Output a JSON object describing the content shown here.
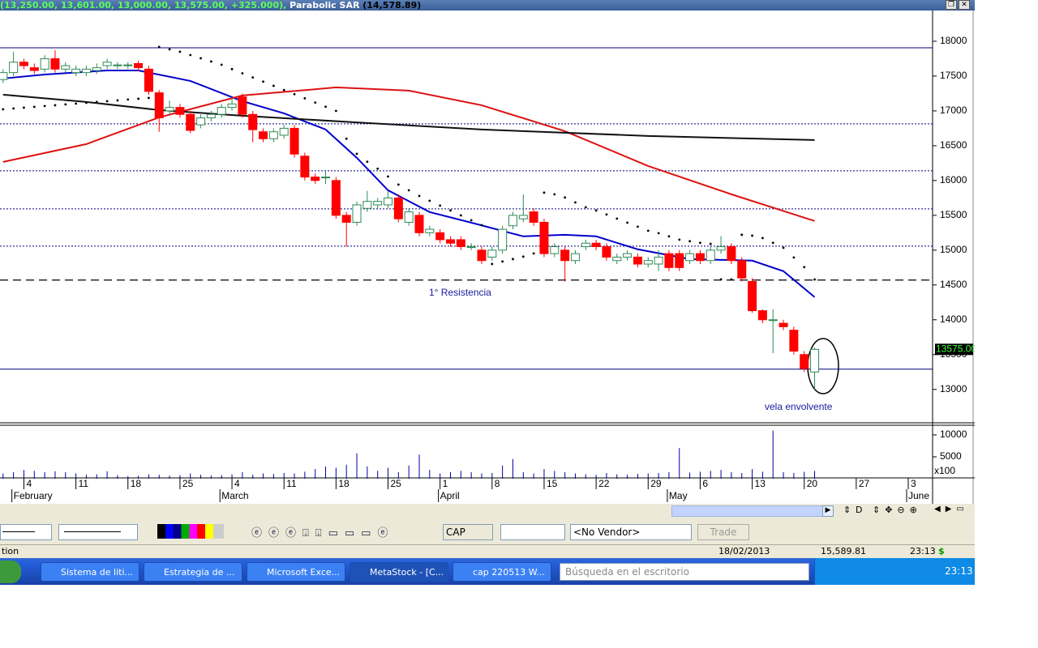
{
  "window": {
    "header_values": "(13,250.00, 13,601.00, 13,000.00, 13,575.00, +325.000),",
    "header_indicator": "Parabolic SAR",
    "header_indicator_value": "(14,578.89)"
  },
  "chart_data": {
    "type": "candlestick",
    "categories": [
      null,
      null,
      "4",
      null,
      null,
      null,
      null,
      "11",
      null,
      null,
      null,
      null,
      "18",
      null,
      null,
      null,
      null,
      "25",
      null,
      null,
      null,
      null,
      "4",
      null,
      null,
      null,
      null,
      "11",
      null,
      null,
      null,
      null,
      "18",
      null,
      null,
      null,
      null,
      "25",
      null,
      null,
      null,
      null,
      "1",
      null,
      null,
      null,
      null,
      "8",
      null,
      null,
      null,
      null,
      "15",
      null,
      null,
      null,
      null,
      "22",
      null,
      null,
      null,
      null,
      "29",
      null,
      null,
      null,
      null,
      "6",
      null,
      null,
      null,
      null,
      "13",
      null,
      null,
      null,
      null,
      "20",
      null,
      null,
      null,
      null,
      "27",
      null,
      null,
      null,
      null,
      "3"
    ],
    "month_labels": [
      null,
      "February",
      null,
      null,
      null,
      null,
      null,
      null,
      null,
      null,
      null,
      null,
      null,
      null,
      null,
      null,
      null,
      null,
      null,
      null,
      null,
      "March",
      null,
      null,
      null,
      null,
      null,
      null,
      null,
      null,
      null,
      null,
      null,
      null,
      null,
      null,
      null,
      null,
      null,
      null,
      null,
      null,
      "April",
      null,
      null,
      null,
      null,
      null,
      null,
      null,
      null,
      null,
      null,
      null,
      null,
      null,
      null,
      null,
      null,
      null,
      null,
      null,
      null,
      null,
      "May",
      null,
      null,
      null,
      null,
      null,
      null,
      null,
      null,
      null,
      null,
      null,
      null,
      null,
      null,
      null,
      null,
      null,
      null,
      null,
      null,
      null,
      null,
      "June"
    ],
    "open": [
      17450,
      17550,
      17700,
      17620,
      17600,
      17750,
      17600,
      17550,
      17550,
      17580,
      17650,
      17650,
      17650,
      17680,
      17600,
      17260,
      17000,
      17050,
      16950,
      16800,
      16900,
      16950,
      17050,
      17200,
      16950,
      16700,
      16600,
      16650,
      16750,
      16350,
      16050,
      16050,
      16000,
      15500,
      15400,
      15600,
      15650,
      15650,
      15750,
      15400,
      15500,
      15250,
      15250,
      15150,
      15150,
      15050,
      15000,
      14900,
      15000,
      15350,
      15450,
      15550,
      15400,
      14950,
      15000,
      14850,
      15050,
      15100,
      15050,
      14850,
      14900,
      14900,
      14800,
      14800,
      14950,
      14950,
      14850,
      14950,
      14850,
      15000,
      15050,
      14850,
      14550,
      14130,
      14000,
      13950,
      13850,
      13500,
      13250,
      null,
      null,
      null,
      null,
      null,
      null,
      null,
      null,
      null
    ],
    "high": [
      17600,
      17850,
      17750,
      17680,
      17800,
      17870,
      17700,
      17650,
      17650,
      17680,
      17750,
      17700,
      17700,
      17720,
      17650,
      17300,
      17150,
      17100,
      17000,
      16950,
      17000,
      17100,
      17200,
      17250,
      17000,
      16750,
      16750,
      16800,
      16800,
      16400,
      16100,
      16150,
      16050,
      15550,
      15700,
      15850,
      15750,
      15850,
      15800,
      15600,
      15550,
      15350,
      15300,
      15200,
      15200,
      15100,
      15050,
      15050,
      15350,
      15550,
      15800,
      15600,
      15450,
      15100,
      15050,
      15000,
      15150,
      15150,
      15100,
      14950,
      15000,
      14950,
      14900,
      15000,
      15000,
      15000,
      15000,
      15000,
      15050,
      15200,
      15100,
      14900,
      14600,
      14150,
      14150,
      14000,
      13900,
      13550,
      13601,
      null,
      null,
      null,
      null,
      null,
      null,
      null,
      null,
      null
    ],
    "low": [
      17400,
      17500,
      17600,
      17530,
      17550,
      17550,
      17550,
      17500,
      17500,
      17530,
      17600,
      17600,
      17600,
      17570,
      17230,
      16700,
      16950,
      16900,
      16680,
      16750,
      16850,
      16900,
      17000,
      16900,
      16550,
      16550,
      16550,
      16600,
      16330,
      16000,
      15950,
      15950,
      15450,
      15050,
      15350,
      15550,
      15600,
      15600,
      15400,
      15350,
      15200,
      15200,
      15100,
      15050,
      15000,
      15000,
      14800,
      14850,
      14950,
      15300,
      15400,
      15350,
      14900,
      14900,
      14550,
      14800,
      15000,
      15000,
      14850,
      14800,
      14850,
      14750,
      14750,
      14700,
      14700,
      14700,
      14800,
      14800,
      14800,
      14950,
      14800,
      14550,
      14100,
      13950,
      13520,
      13850,
      13500,
      13250,
      13000,
      null,
      null,
      null,
      null,
      null,
      null,
      null,
      null,
      null
    ],
    "close": [
      17550,
      17700,
      17650,
      17580,
      17750,
      17600,
      17650,
      17600,
      17600,
      17620,
      17700,
      17660,
      17660,
      17620,
      17280,
      16900,
      17050,
      16950,
      16720,
      16900,
      16950,
      17050,
      17100,
      16950,
      16730,
      16600,
      16700,
      16750,
      16380,
      16050,
      16000,
      16050,
      15500,
      15400,
      15650,
      15700,
      15700,
      15750,
      15450,
      15550,
      15250,
      15300,
      15150,
      15100,
      15050,
      15050,
      14850,
      15000,
      15300,
      15500,
      15500,
      15400,
      14950,
      15050,
      14850,
      14950,
      15100,
      15050,
      14900,
      14900,
      14950,
      14800,
      14850,
      14900,
      14750,
      14750,
      14950,
      14850,
      15000,
      15050,
      14850,
      14600,
      14130,
      14000,
      14000,
      13900,
      13550,
      13300,
      13575,
      null,
      null,
      null,
      null,
      null,
      null,
      null,
      null,
      null
    ],
    "up_color": "#2e8b57",
    "down_color": "#ff0000",
    "ylim": [
      12520,
      18360
    ],
    "yticks": [
      13000,
      13500,
      14000,
      14500,
      15000,
      15500,
      16000,
      16500,
      17000,
      17500,
      18000
    ],
    "lines": [
      {
        "color": "#0000cc",
        "x": [
          0,
          4,
          10,
          13,
          18,
          23,
          27,
          31,
          34,
          37,
          41,
          45,
          50,
          54,
          57,
          61,
          66,
          72,
          75,
          78
        ],
        "values": [
          17465,
          17523,
          17581,
          17581,
          17430,
          17140,
          16965,
          16733,
          16326,
          15860,
          15547,
          15395,
          15198,
          15221,
          15198,
          15012,
          14872,
          14849,
          14698,
          14326
        ]
      },
      {
        "color": "#dd1111",
        "x": [
          0,
          8,
          15,
          23,
          32,
          39,
          46,
          54,
          62,
          70,
          78
        ],
        "values": [
          16267,
          16523,
          16907,
          17221,
          17337,
          17291,
          17081,
          16709,
          16209,
          15802,
          15419
        ]
      },
      {
        "color": "#111111",
        "x": [
          0,
          8,
          15,
          23,
          35,
          46,
          62,
          78
        ],
        "values": [
          17233,
          17128,
          17012,
          16930,
          16826,
          16733,
          16640,
          16581
        ]
      }
    ],
    "sar": {
      "color": "#000000",
      "values": [
        17023,
        17035,
        17047,
        17058,
        17070,
        17081,
        17093,
        17105,
        17116,
        17128,
        17140,
        17151,
        17163,
        17174,
        17186,
        17919,
        17884,
        17849,
        17802,
        17756,
        17709,
        17663,
        17600,
        17540,
        17480,
        17420,
        17360,
        17300,
        17240,
        17180,
        17120,
        17060,
        17000,
        16600,
        16384,
        16270,
        16170,
        16058,
        15942,
        15860,
        15779,
        15709,
        15640,
        15570,
        15500,
        15430,
        15360,
        14802,
        14837,
        14872,
        14907,
        14953,
        15826,
        15802,
        15756,
        15686,
        15616,
        15570,
        15512,
        15453,
        15395,
        15337,
        15279,
        15244,
        15198,
        15151,
        15128,
        15105,
        15090,
        14581,
        14581,
        15221,
        15209,
        15174,
        15105,
        15035,
        14895,
        14756,
        14579,
        null,
        null,
        null,
        null,
        null,
        null,
        null,
        null,
        null
      ]
    },
    "hlines": [
      {
        "value": 17907,
        "color": "#000080",
        "style": "solid"
      },
      {
        "value": 16814,
        "color": "#000080",
        "style": "dotted"
      },
      {
        "value": 16140,
        "color": "#000080",
        "style": "dotted"
      },
      {
        "value": 15593,
        "color": "#000080",
        "style": "dotted"
      },
      {
        "value": 15058,
        "color": "#000080",
        "style": "dotted"
      },
      {
        "value": 14570,
        "color": "#000000",
        "style": "dashed"
      },
      {
        "value": 13291,
        "color": "#000080",
        "style": "solid"
      }
    ],
    "annotations": [
      "1° Resistencia",
      "vela envolvente"
    ],
    "last_price": {
      "value": 13575,
      "label": "13575.00"
    },
    "volume": {
      "color": "#0000aa",
      "unit_label": "x100",
      "ylim": [
        0,
        12400
      ],
      "yticks": [
        5000,
        10000
      ],
      "values": [
        1200,
        1500,
        2000,
        1800,
        1500,
        1700,
        1500,
        1200,
        900,
        1000,
        1700,
        800,
        600,
        700,
        1000,
        900,
        700,
        800,
        1200,
        900,
        700,
        800,
        1000,
        1500,
        900,
        1200,
        1100,
        1300,
        1200,
        1600,
        2200,
        2800,
        2500,
        3200,
        5800,
        2800,
        1800,
        2500,
        1500,
        3000,
        5500,
        2000,
        1200,
        1500,
        1800,
        1500,
        1200,
        1300,
        3000,
        4500,
        1500,
        1200,
        2200,
        1800,
        1500,
        1200,
        1000,
        900,
        1300,
        1000,
        900,
        1100,
        1200,
        1300,
        1500,
        7000,
        1400,
        1600,
        1800,
        2000,
        1500,
        1300,
        2200,
        1600,
        11000,
        1500,
        1300,
        1600,
        1800,
        null,
        null,
        null,
        null,
        null,
        null,
        null,
        null,
        null
      ]
    }
  },
  "nav_label": "D",
  "toolbar": {
    "symbol": "CAP",
    "vendor": "<No Vendor>",
    "trade": "Trade"
  },
  "status_bar": {
    "left": "tion",
    "date": "18/02/2013",
    "value": "15,589.81",
    "time": "23:13",
    "currency": "$"
  },
  "taskbar": {
    "items": [
      "Sistema de liti...",
      "Estrategia de ...",
      "Microsoft Exce...",
      "MetaStock - [C...",
      "cap 220513 W..."
    ],
    "search": "Búsqueda en el escritorio",
    "clock": "23:13"
  }
}
